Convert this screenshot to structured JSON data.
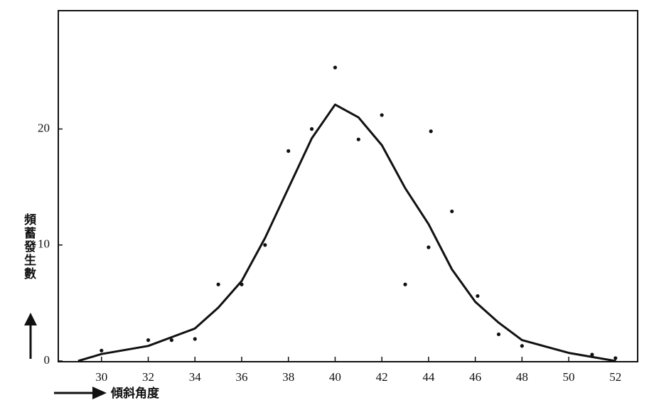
{
  "chart_data": {
    "type": "scatter",
    "xlabel": "傾斜角度",
    "ylabel": "頻蓄發生數",
    "xlim": [
      28.15,
      52.95
    ],
    "ylim": [
      0,
      30.2
    ],
    "xticks": [
      30,
      32,
      34,
      36,
      38,
      40,
      42,
      44,
      46,
      48,
      50,
      52
    ],
    "yticks": [
      0,
      10,
      20
    ],
    "series": [
      {
        "type": "scatter",
        "color": "#111111",
        "x": [
          30,
          32,
          33,
          34,
          35,
          36,
          37,
          38,
          39,
          40,
          41,
          42,
          43,
          44,
          44.1,
          45,
          46.1,
          47,
          48,
          51,
          52
        ],
        "values": [
          0.9,
          1.8,
          1.8,
          1.9,
          6.6,
          6.6,
          10.0,
          18.1,
          20.0,
          25.3,
          19.1,
          21.2,
          6.6,
          9.8,
          19.8,
          12.9,
          5.6,
          2.3,
          1.3,
          0.55,
          0.25
        ]
      },
      {
        "type": "line",
        "color": "#111111",
        "x": [
          29,
          30,
          32,
          34,
          35,
          36,
          37,
          38,
          39,
          40,
          41,
          42,
          43,
          44,
          45,
          46,
          47,
          48,
          50,
          52
        ],
        "values": [
          0,
          0.6,
          1.3,
          2.8,
          4.6,
          6.9,
          10.6,
          14.9,
          19.2,
          22.1,
          21.0,
          18.6,
          14.9,
          11.8,
          7.9,
          5.1,
          3.3,
          1.8,
          0.7,
          0
        ]
      }
    ]
  }
}
